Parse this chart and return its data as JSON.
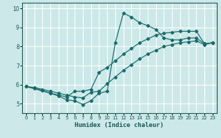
{
  "xlabel": "Humidex (Indice chaleur)",
  "background_color": "#cce8e8",
  "grid_color": "#ffffff",
  "line_color": "#1a6b6b",
  "xlim": [
    -0.5,
    23.5
  ],
  "ylim": [
    4.5,
    10.3
  ],
  "xticks": [
    0,
    1,
    2,
    3,
    4,
    5,
    6,
    7,
    8,
    9,
    10,
    11,
    12,
    13,
    14,
    15,
    16,
    17,
    18,
    19,
    20,
    21,
    22,
    23
  ],
  "yticks": [
    5,
    6,
    7,
    8,
    9,
    10
  ],
  "line1_x": [
    0,
    1,
    2,
    3,
    4,
    5,
    6,
    7,
    8,
    9,
    10,
    11,
    12,
    13,
    14,
    15,
    16,
    17,
    18,
    19,
    20,
    21,
    22,
    23
  ],
  "line1_y": [
    5.9,
    5.8,
    5.7,
    5.55,
    5.4,
    5.2,
    5.15,
    4.95,
    5.15,
    5.55,
    5.65,
    8.2,
    9.75,
    9.55,
    9.25,
    9.1,
    8.9,
    8.45,
    8.35,
    8.35,
    8.45,
    8.45,
    8.15,
    8.2
  ],
  "line2_x": [
    0,
    1,
    2,
    3,
    4,
    5,
    6,
    7,
    8,
    9,
    10,
    11,
    12,
    13,
    14,
    15,
    16,
    17,
    18,
    19,
    20,
    21,
    22,
    23
  ],
  "line2_y": [
    5.9,
    5.85,
    5.75,
    5.65,
    5.55,
    5.45,
    5.35,
    5.3,
    5.6,
    5.65,
    6.05,
    6.4,
    6.75,
    7.05,
    7.35,
    7.6,
    7.8,
    8.0,
    8.1,
    8.2,
    8.25,
    8.3,
    8.1,
    8.2
  ],
  "line3_x": [
    0,
    3,
    4,
    5,
    6,
    7,
    8,
    9,
    10,
    11,
    12,
    13,
    14,
    15,
    16,
    17,
    18,
    19,
    20,
    21,
    22,
    23
  ],
  "line3_y": [
    5.9,
    5.55,
    5.45,
    5.35,
    5.65,
    5.65,
    5.75,
    6.65,
    6.9,
    7.25,
    7.6,
    7.9,
    8.2,
    8.4,
    8.6,
    8.7,
    8.75,
    8.8,
    8.8,
    8.8,
    8.15,
    8.2
  ],
  "tick_fontsize": 5.0,
  "xlabel_fontsize": 6.5
}
